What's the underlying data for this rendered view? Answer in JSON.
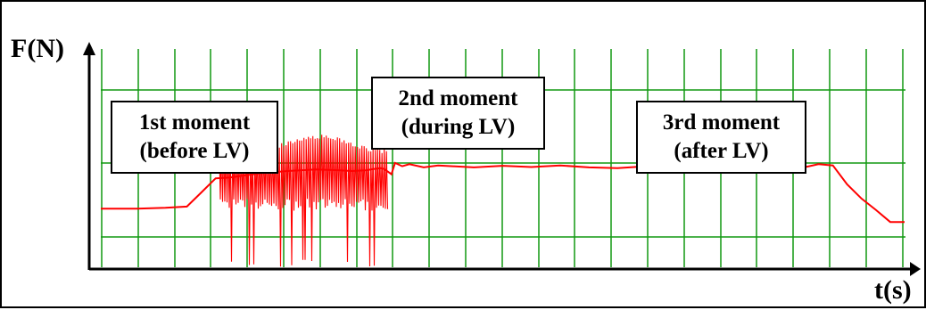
{
  "chart_data": {
    "type": "line",
    "title": "",
    "xlabel": "t(s)",
    "ylabel": "F(N)",
    "grid": true,
    "grid_color": "#119911",
    "axis_color": "#000000",
    "series": [
      {
        "color": "#ff0000",
        "x": [
          0,
          5,
          9,
          12,
          14,
          16,
          18,
          22,
          26,
          30,
          33,
          35,
          37,
          38,
          39,
          39.5,
          40.5,
          41,
          42,
          43,
          45,
          47,
          49,
          52,
          56,
          60,
          64,
          68,
          72,
          76,
          80,
          84,
          88,
          90,
          92,
          94,
          96,
          98,
          100,
          102,
          104,
          106,
          108,
          110,
          112
        ],
        "y": [
          1.45,
          1.45,
          1.47,
          1.5,
          1.85,
          2.2,
          2.22,
          2.32,
          2.38,
          2.42,
          2.4,
          2.38,
          2.4,
          2.43,
          2.45,
          2.43,
          2.3,
          2.58,
          2.5,
          2.55,
          2.47,
          2.52,
          2.5,
          2.47,
          2.51,
          2.48,
          2.52,
          2.47,
          2.45,
          2.5,
          2.48,
          2.44,
          2.47,
          2.5,
          2.5,
          2.49,
          2.47,
          2.47,
          2.55,
          2.52,
          2.05,
          1.7,
          1.42,
          1.12,
          1.12
        ]
      }
    ],
    "oscillation_segment": {
      "x_start": 16.5,
      "x_end": 40,
      "ymin": 0.0,
      "ymax": 3.0,
      "dense_band": [
        1.4,
        3.0
      ]
    },
    "xlim": [
      0,
      112
    ],
    "ylim": [
      0,
      5.4
    ],
    "annotations": [
      {
        "lines": [
          "1st moment",
          "(before LV)"
        ]
      },
      {
        "lines": [
          "2nd moment",
          "(during LV)"
        ]
      },
      {
        "lines": [
          "3rd moment",
          "(after LV)"
        ]
      }
    ]
  }
}
